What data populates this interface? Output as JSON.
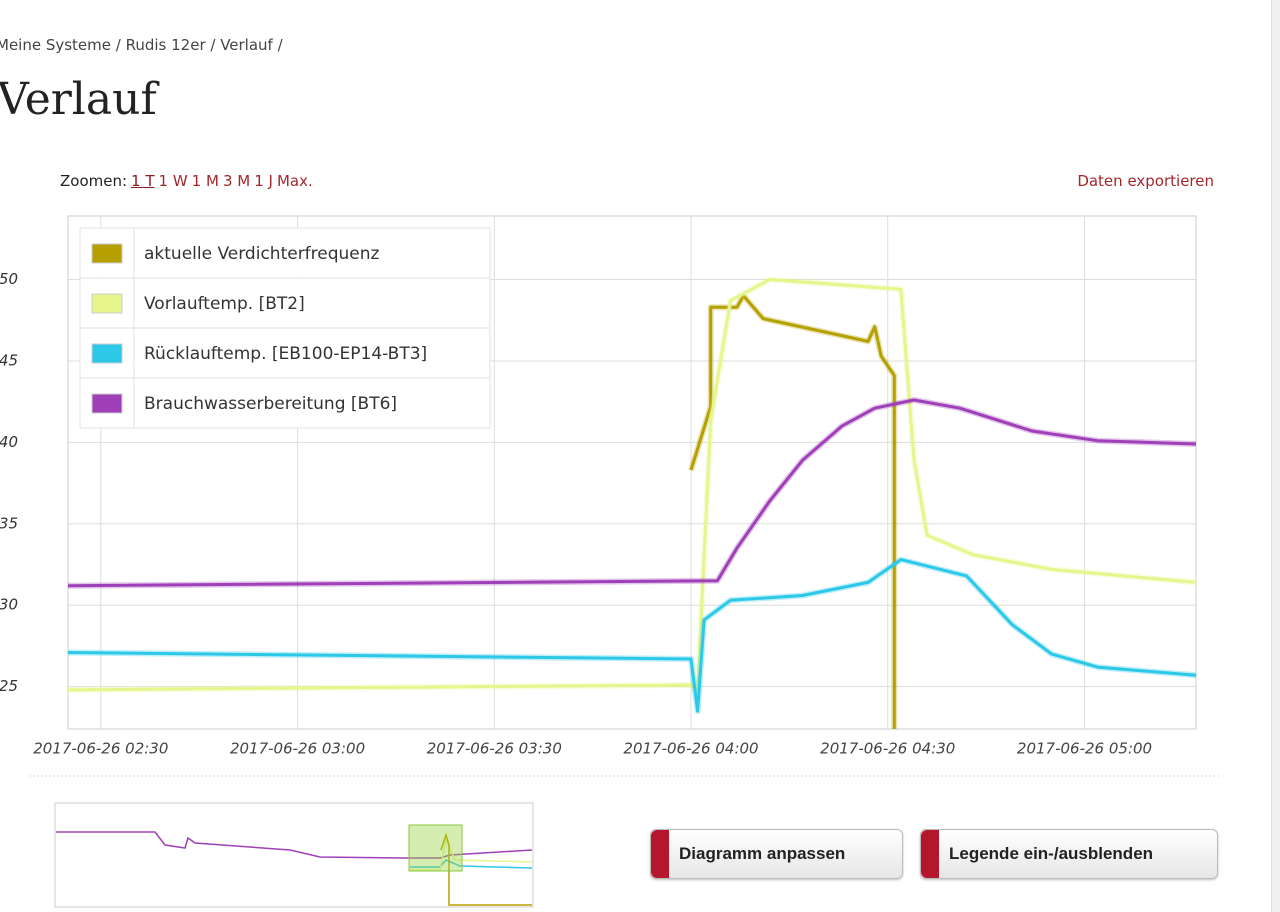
{
  "breadcrumb": "Meine Systeme / Rudis 12er / Verlauf /",
  "heading": "Verlauf",
  "zoom": {
    "label": "Zoomen:",
    "options": [
      "1 T",
      "1 W",
      "1 M",
      "3 M",
      "1 J",
      "Max."
    ]
  },
  "export": "Daten exportieren",
  "buttons": [
    "Diagramm anpassen",
    "Legende ein-/ausblenden"
  ],
  "chart_data": {
    "type": "line",
    "xlim": [
      "2017-06-26 02:25",
      "2017-06-26 05:17"
    ],
    "xticks": [
      "2017-06-26 02:30",
      "2017-06-26 03:00",
      "2017-06-26 03:30",
      "2017-06-26 04:00",
      "2017-06-26 04:30",
      "2017-06-26 05:00"
    ],
    "ylim": [
      22.4,
      53.9
    ],
    "yticks": [
      25,
      30,
      35,
      40,
      45,
      50
    ],
    "grid": true,
    "legend": "upper left",
    "series": [
      {
        "name": "aktuelle Verdichterfrequenz",
        "color": "#b5a000",
        "x": [
          "2017-06-26 04:00",
          "2017-06-26 04:03",
          "2017-06-26 04:03",
          "2017-06-26 04:07",
          "2017-06-26 04:08",
          "2017-06-26 04:11",
          "2017-06-26 04:27",
          "2017-06-26 04:28",
          "2017-06-26 04:29",
          "2017-06-26 04:31",
          "2017-06-26 04:31"
        ],
        "values": [
          38.3,
          42.2,
          48.3,
          48.3,
          49.0,
          47.6,
          46.2,
          47.1,
          45.3,
          44.1,
          22.4
        ]
      },
      {
        "name": "Vorlauftemp. [BT2]",
        "color": "#e6f58c",
        "x": [
          "2017-06-26 02:25",
          "2017-06-26 04:00",
          "2017-06-26 04:01",
          "2017-06-26 04:03",
          "2017-06-26 04:06",
          "2017-06-26 04:12",
          "2017-06-26 04:32",
          "2017-06-26 04:34",
          "2017-06-26 04:36",
          "2017-06-26 04:43",
          "2017-06-26 04:55",
          "2017-06-26 05:17"
        ],
        "values": [
          24.8,
          25.1,
          24.8,
          41.3,
          48.7,
          50.0,
          49.4,
          38.9,
          34.3,
          33.1,
          32.2,
          31.4
        ]
      },
      {
        "name": "Rücklauftemp. [EB100-EP14-BT3]",
        "color": "#2cc8e8",
        "x": [
          "2017-06-26 02:25",
          "2017-06-26 04:00",
          "2017-06-26 04:01",
          "2017-06-26 04:02",
          "2017-06-26 04:06",
          "2017-06-26 04:17",
          "2017-06-26 04:27",
          "2017-06-26 04:32",
          "2017-06-26 04:42",
          "2017-06-26 04:49",
          "2017-06-26 04:55",
          "2017-06-26 05:02",
          "2017-06-26 05:17"
        ],
        "values": [
          27.1,
          26.7,
          23.5,
          29.1,
          30.3,
          30.6,
          31.4,
          32.8,
          31.8,
          28.8,
          27.0,
          26.2,
          25.7
        ]
      },
      {
        "name": "Brauchwasserbereitung [BT6]",
        "color": "#a040b8",
        "x": [
          "2017-06-26 02:25",
          "2017-06-26 04:04",
          "2017-06-26 04:07",
          "2017-06-26 04:12",
          "2017-06-26 04:17",
          "2017-06-26 04:23",
          "2017-06-26 04:28",
          "2017-06-26 04:34",
          "2017-06-26 04:41",
          "2017-06-26 04:52",
          "2017-06-26 05:02",
          "2017-06-26 05:17"
        ],
        "values": [
          31.2,
          31.5,
          33.5,
          36.4,
          38.9,
          41.0,
          42.1,
          42.6,
          42.1,
          40.7,
          40.1,
          39.9
        ]
      }
    ]
  }
}
